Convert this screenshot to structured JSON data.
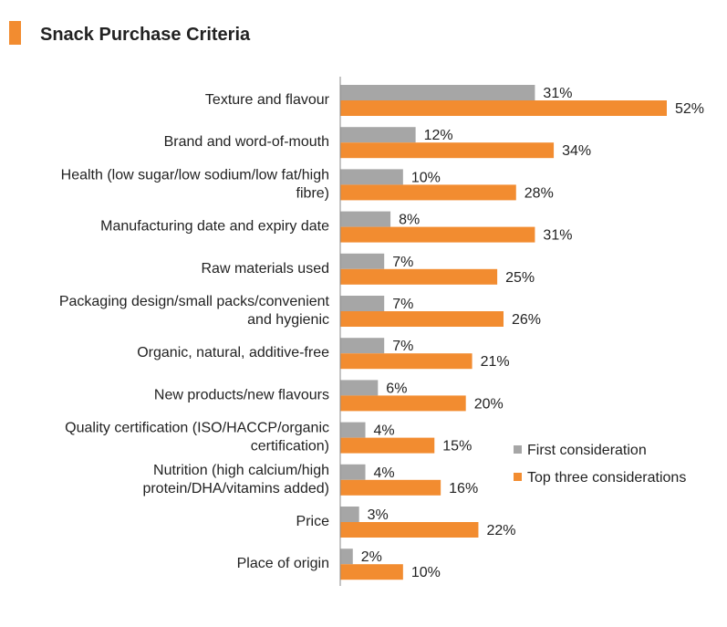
{
  "chart_data": {
    "type": "bar",
    "orientation": "horizontal",
    "title": "Snack Purchase Criteria",
    "categories": [
      [
        "Texture and flavour"
      ],
      [
        "Brand and word-of-mouth"
      ],
      [
        "Health (low sugar/low sodium/low fat/high",
        "fibre)"
      ],
      [
        "Manufacturing date and expiry date"
      ],
      [
        "Raw materials used"
      ],
      [
        "Packaging design/small packs/convenient",
        "and hygienic"
      ],
      [
        "Organic, natural, additive-free"
      ],
      [
        "New products/new flavours"
      ],
      [
        "Quality certification (ISO/HACCP/organic",
        "certification)"
      ],
      [
        "Nutrition (high calcium/high",
        "protein/DHA/vitamins added)"
      ],
      [
        "Price"
      ],
      [
        "Place of origin"
      ]
    ],
    "series": [
      {
        "name": "First consideration",
        "color": "#a6a6a6",
        "values": [
          31,
          12,
          10,
          8,
          7,
          7,
          7,
          6,
          4,
          4,
          3,
          2
        ],
        "labels": [
          "31%",
          "12%",
          "10%",
          "8%",
          "7%",
          "7%",
          "7%",
          "6%",
          "4%",
          "4%",
          "3%",
          "2%"
        ]
      },
      {
        "name": "Top three considerations",
        "color": "#f28c30",
        "values": [
          52,
          34,
          28,
          31,
          25,
          26,
          21,
          20,
          15,
          16,
          22,
          10
        ],
        "labels": [
          "52%",
          "34%",
          "28%",
          "31%",
          "25%",
          "26%",
          "21%",
          "20%",
          "15%",
          "16%",
          "22%",
          "10%"
        ]
      }
    ],
    "xlim": [
      0,
      55
    ],
    "grid": false,
    "legend": "right",
    "title_marker_color": "#f28c30",
    "axis_color": "#888888"
  }
}
